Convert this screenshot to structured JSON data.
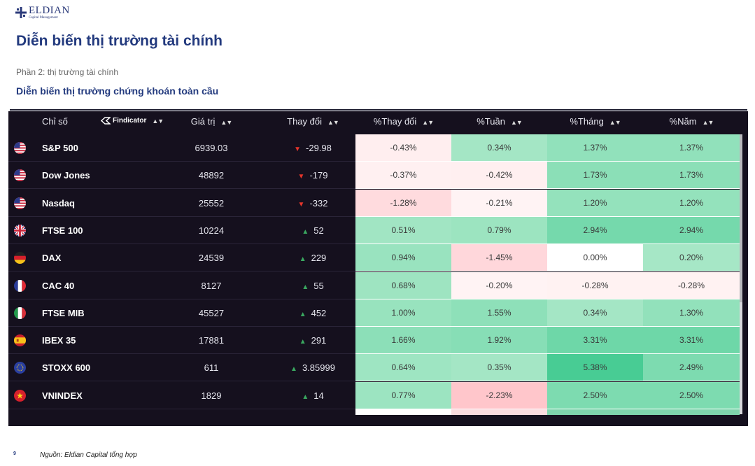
{
  "brand": {
    "name": "ELDIAN",
    "subtitle": "Capital Management"
  },
  "page_title": "Diễn biến thị trường tài chính",
  "section_label": "Phần 2: thị trường tài chính",
  "sub_title": "Diễn biến thị trường chứng khoán toàn cầu",
  "table": {
    "headers": {
      "index": "Chỉ số",
      "value": "Giá trị",
      "change": "Thay đổi",
      "pct_change": "%Thay đổi",
      "pct_week": "%Tuần",
      "pct_month": "%Tháng",
      "pct_year": "%Năm"
    },
    "provider_logo": "Findicator",
    "sort_icon": "sort-icon",
    "rows": [
      {
        "flag": "us",
        "name": "S&P 500",
        "value": "6939.03",
        "direction": "down",
        "change": "-29.98",
        "pct_change": "-0.43%",
        "pct_week": "0.34%",
        "pct_month": "1.37%",
        "pct_year": "1.37%"
      },
      {
        "flag": "us",
        "name": "Dow Jones",
        "value": "48892",
        "direction": "down",
        "change": "-179",
        "pct_change": "-0.37%",
        "pct_week": "-0.42%",
        "pct_month": "1.73%",
        "pct_year": "1.73%"
      },
      {
        "flag": "us",
        "name": "Nasdaq",
        "value": "25552",
        "direction": "down",
        "change": "-332",
        "pct_change": "-1.28%",
        "pct_week": "-0.21%",
        "pct_month": "1.20%",
        "pct_year": "1.20%"
      },
      {
        "flag": "uk",
        "name": "FTSE 100",
        "value": "10224",
        "direction": "up",
        "change": "52",
        "pct_change": "0.51%",
        "pct_week": "0.79%",
        "pct_month": "2.94%",
        "pct_year": "2.94%"
      },
      {
        "flag": "de",
        "name": "DAX",
        "value": "24539",
        "direction": "up",
        "change": "229",
        "pct_change": "0.94%",
        "pct_week": "-1.45%",
        "pct_month": "0.00%",
        "pct_year": "0.20%"
      },
      {
        "flag": "fr",
        "name": "CAC 40",
        "value": "8127",
        "direction": "up",
        "change": "55",
        "pct_change": "0.68%",
        "pct_week": "-0.20%",
        "pct_month": "-0.28%",
        "pct_year": "-0.28%"
      },
      {
        "flag": "it",
        "name": "FTSE MIB",
        "value": "45527",
        "direction": "up",
        "change": "452",
        "pct_change": "1.00%",
        "pct_week": "1.55%",
        "pct_month": "0.34%",
        "pct_year": "1.30%"
      },
      {
        "flag": "es",
        "name": "IBEX 35",
        "value": "17881",
        "direction": "up",
        "change": "291",
        "pct_change": "1.66%",
        "pct_week": "1.92%",
        "pct_month": "3.31%",
        "pct_year": "3.31%"
      },
      {
        "flag": "eu",
        "name": "STOXX 600",
        "value": "611",
        "direction": "up",
        "change": "3.85999",
        "pct_change": "0.64%",
        "pct_week": "0.35%",
        "pct_month": "5.38%",
        "pct_year": "2.49%"
      },
      {
        "flag": "vn",
        "name": "VNINDEX",
        "value": "1829",
        "direction": "up",
        "change": "14",
        "pct_change": "0.77%",
        "pct_week": "-2.23%",
        "pct_month": "2.50%",
        "pct_year": "2.50%"
      }
    ]
  },
  "colors": {
    "table_bg": "#15101e",
    "down_arrow": "#e5352b",
    "up_arrow": "#3aa860",
    "title": "#233a7e"
  },
  "footer": {
    "page_number": "9",
    "source": "Nguồn: Eldian Capital tổng hợp"
  }
}
